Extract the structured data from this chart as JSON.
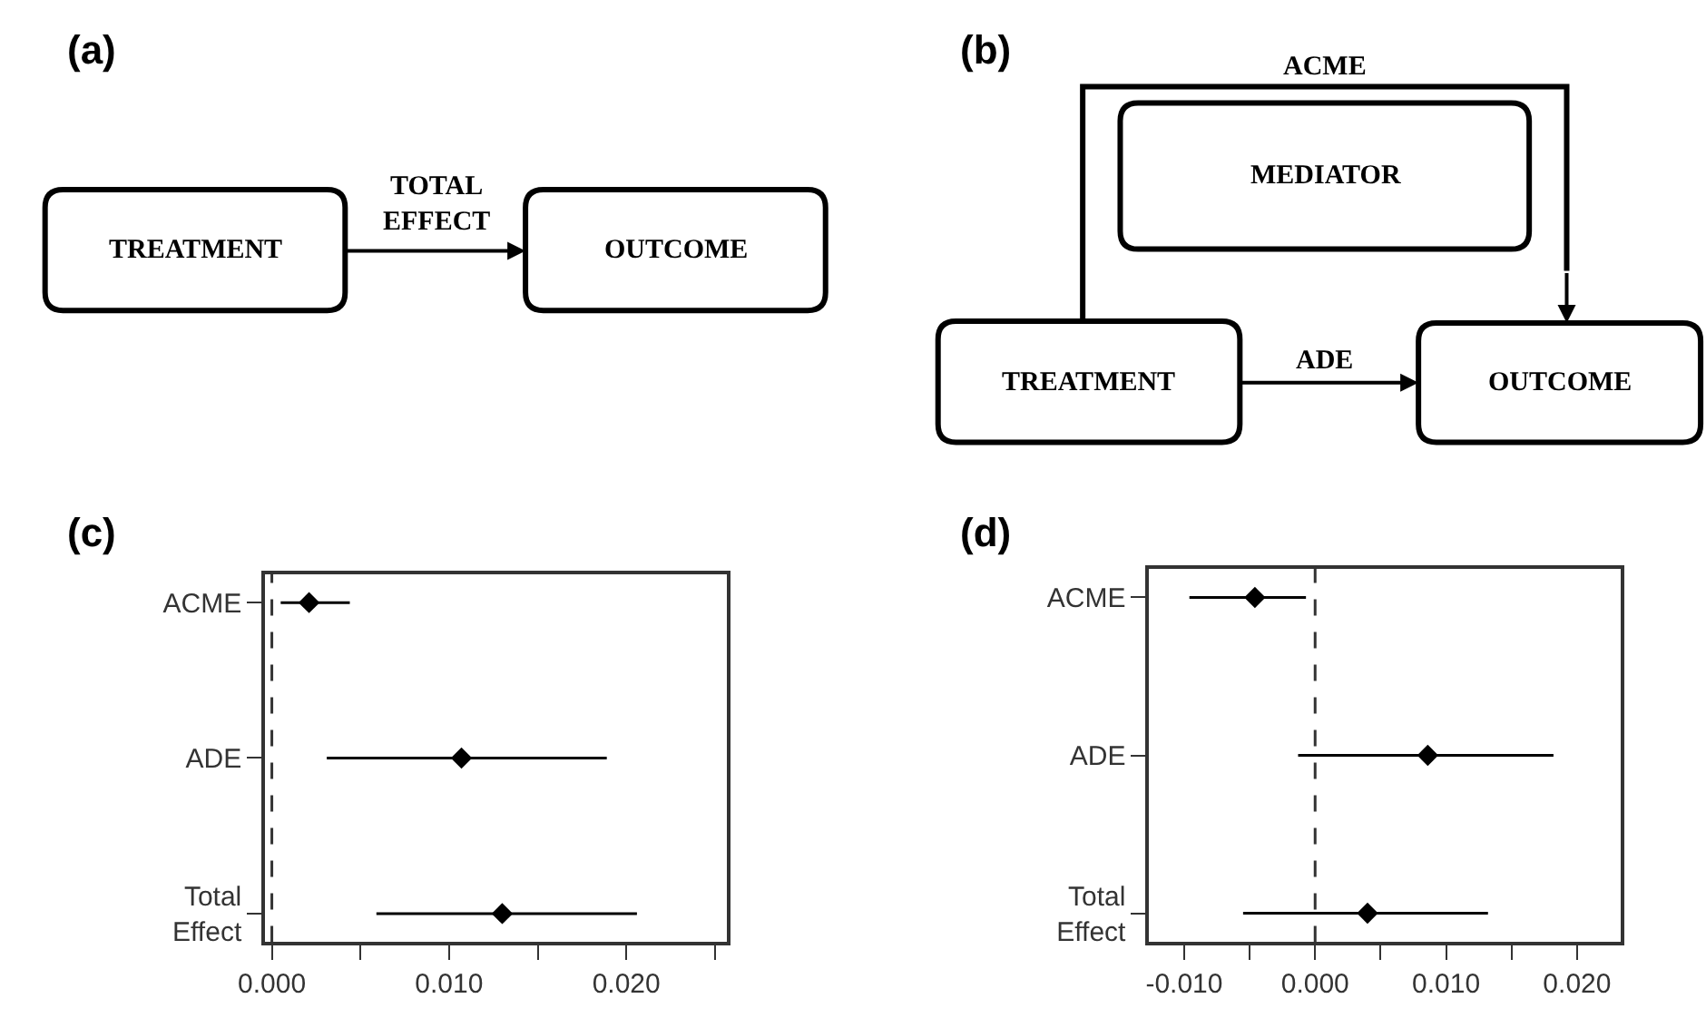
{
  "chart_data": [
    {
      "type": "other",
      "title": "(a)",
      "annotations": [
        "TREATMENT",
        "TOTAL\nEFFECT",
        "OUTCOME"
      ]
    },
    {
      "type": "other",
      "title": "(b)",
      "annotations": [
        "ACME",
        "MEDIATOR",
        "TREATMENT",
        "ADE",
        "OUTCOME"
      ]
    },
    {
      "type": "scatter",
      "title": "(c)",
      "orientation": "horizontal",
      "categories": [
        "ACME",
        "ADE",
        "Total\nEffect"
      ],
      "values": [
        0.0021,
        0.0107,
        0.013
      ],
      "errors": [
        [
          0.0005,
          0.0044
        ],
        [
          0.0031,
          0.0189
        ],
        [
          0.0059,
          0.0206
        ]
      ],
      "color": "#000000",
      "marker": "diamond",
      "xlim": [
        -0.0004,
        0.0257
      ],
      "xticks": [
        {
          "value": 0,
          "label": "0.000"
        },
        {
          "value": 0.005,
          "label": null
        },
        {
          "value": 0.01,
          "label": "0.010"
        },
        {
          "value": 0.015,
          "label": null
        },
        {
          "value": 0.02,
          "label": "0.020"
        },
        {
          "value": 0.025,
          "label": null
        }
      ],
      "ref_lines": [
        {
          "axis": "x",
          "value": 0,
          "label": null,
          "color": "#333333",
          "line_style": "dashed"
        }
      ]
    },
    {
      "type": "scatter",
      "title": "(d)",
      "orientation": "horizontal",
      "categories": [
        "ACME",
        "ADE",
        "Total\nEffect"
      ],
      "values": [
        -0.0046,
        0.0086,
        0.004
      ],
      "errors": [
        [
          -0.0096,
          -0.0007
        ],
        [
          -0.0013,
          0.0182
        ],
        [
          -0.0055,
          0.0132
        ]
      ],
      "color": "#000000",
      "marker": "diamond",
      "xlim": [
        -0.0127,
        0.0233
      ],
      "xticks": [
        {
          "value": -0.01,
          "label": "-0.010"
        },
        {
          "value": -0.005,
          "label": null
        },
        {
          "value": 0,
          "label": "0.000"
        },
        {
          "value": 0.005,
          "label": null
        },
        {
          "value": 0.01,
          "label": "0.010"
        },
        {
          "value": 0.015,
          "label": null
        },
        {
          "value": 0.02,
          "label": "0.020"
        }
      ],
      "ref_lines": [
        {
          "axis": "x",
          "value": 0,
          "label": null,
          "color": "#333333",
          "line_style": "dashed"
        }
      ]
    }
  ]
}
